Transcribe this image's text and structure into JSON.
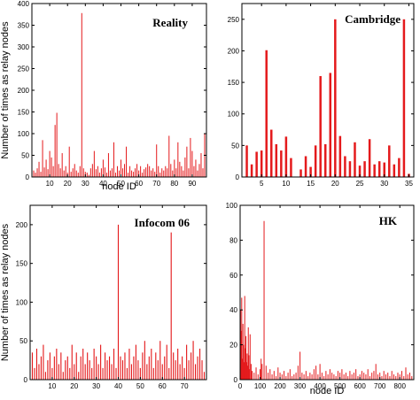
{
  "chart_data": [
    {
      "type": "bar",
      "title": "Reality",
      "xlabel": "node ID",
      "ylabel": "Number of times as relay nodes",
      "xlim": [
        0,
        98
      ],
      "ylim": [
        0,
        400
      ],
      "xticks": [
        10,
        20,
        30,
        40,
        50,
        60,
        70,
        80,
        90
      ],
      "yticks": [
        0,
        50,
        100,
        150,
        200,
        250,
        300,
        350,
        400
      ],
      "color": "#e41a1c",
      "x": [
        1,
        2,
        3,
        4,
        5,
        6,
        7,
        8,
        9,
        10,
        11,
        12,
        13,
        14,
        15,
        16,
        17,
        18,
        19,
        20,
        21,
        22,
        23,
        24,
        25,
        26,
        27,
        28,
        29,
        30,
        31,
        32,
        33,
        34,
        35,
        36,
        37,
        38,
        39,
        40,
        41,
        42,
        43,
        44,
        45,
        46,
        47,
        48,
        49,
        50,
        51,
        52,
        53,
        54,
        55,
        56,
        57,
        58,
        59,
        60,
        61,
        62,
        63,
        64,
        65,
        66,
        67,
        68,
        69,
        70,
        71,
        72,
        73,
        74,
        75,
        76,
        77,
        78,
        79,
        80,
        81,
        82,
        83,
        84,
        85,
        86,
        87,
        88,
        89,
        90,
        91,
        92,
        93,
        94,
        95,
        96,
        97,
        98
      ],
      "values": [
        15,
        10,
        20,
        35,
        12,
        85,
        22,
        40,
        18,
        60,
        45,
        25,
        120,
        148,
        30,
        20,
        55,
        15,
        25,
        10,
        70,
        12,
        20,
        30,
        15,
        10,
        25,
        378,
        20,
        12,
        10,
        5,
        20,
        30,
        60,
        18,
        25,
        10,
        20,
        40,
        22,
        10,
        55,
        15,
        20,
        80,
        10,
        25,
        15,
        40,
        20,
        30,
        70,
        10,
        25,
        15,
        12,
        20,
        30,
        15,
        25,
        10,
        18,
        22,
        30,
        25,
        15,
        20,
        12,
        75,
        25,
        10,
        20,
        15,
        25,
        20,
        95,
        30,
        15,
        40,
        20,
        80,
        35,
        25,
        15,
        45,
        70,
        20,
        90,
        60,
        25,
        40,
        15,
        30,
        55,
        20,
        100,
        100
      ]
    },
    {
      "type": "bar",
      "title": "Cambridge",
      "xlabel": "",
      "ylabel": "",
      "xlim": [
        1,
        36
      ],
      "ylim": [
        0,
        275
      ],
      "xticks": [
        5,
        10,
        15,
        20,
        25,
        30,
        35
      ],
      "yticks": [
        0,
        50,
        100,
        150,
        200,
        250
      ],
      "color": "#e41a1c",
      "x": [
        1,
        2,
        3,
        4,
        5,
        6,
        7,
        8,
        9,
        10,
        11,
        12,
        13,
        14,
        15,
        16,
        17,
        18,
        19,
        20,
        21,
        22,
        23,
        24,
        25,
        26,
        27,
        28,
        29,
        30,
        31,
        32,
        33,
        34,
        35,
        36
      ],
      "values": [
        0,
        50,
        20,
        40,
        42,
        201,
        75,
        52,
        42,
        64,
        30,
        0,
        12,
        33,
        16,
        50,
        160,
        52,
        165,
        250,
        65,
        33,
        25,
        55,
        18,
        25,
        60,
        20,
        25,
        23,
        50,
        20,
        30,
        250,
        5,
        0
      ]
    },
    {
      "type": "bar",
      "title": "Infocom 06",
      "xlabel": "",
      "ylabel": "Number of times as relay nodes",
      "xlim": [
        0,
        80
      ],
      "ylim": [
        0,
        225
      ],
      "xticks": [
        10,
        20,
        30,
        40,
        50,
        60,
        70
      ],
      "yticks": [
        0,
        50,
        100,
        150,
        200
      ],
      "color": "#e41a1c",
      "x": [
        1,
        2,
        3,
        4,
        5,
        6,
        7,
        8,
        9,
        10,
        11,
        12,
        13,
        14,
        15,
        16,
        17,
        18,
        19,
        20,
        21,
        22,
        23,
        24,
        25,
        26,
        27,
        28,
        29,
        30,
        31,
        32,
        33,
        34,
        35,
        36,
        37,
        38,
        39,
        40,
        41,
        42,
        43,
        44,
        45,
        46,
        47,
        48,
        49,
        50,
        51,
        52,
        53,
        54,
        55,
        56,
        57,
        58,
        59,
        60,
        61,
        62,
        63,
        64,
        65,
        66,
        67,
        68,
        69,
        70,
        71,
        72,
        73,
        74,
        75,
        76,
        77,
        78,
        79
      ],
      "values": [
        35,
        15,
        40,
        20,
        30,
        45,
        10,
        25,
        35,
        15,
        30,
        40,
        20,
        35,
        10,
        25,
        30,
        15,
        45,
        20,
        35,
        10,
        30,
        40,
        20,
        35,
        25,
        15,
        40,
        30,
        20,
        45,
        15,
        35,
        25,
        30,
        20,
        40,
        15,
        200,
        30,
        25,
        35,
        15,
        40,
        20,
        30,
        45,
        25,
        15,
        35,
        50,
        20,
        30,
        40,
        15,
        35,
        25,
        50,
        20,
        30,
        45,
        15,
        190,
        35,
        25,
        40,
        20,
        30,
        15,
        45,
        25,
        35,
        50,
        20,
        30,
        40,
        25,
        10
      ]
    },
    {
      "type": "bar",
      "title": "HK",
      "xlabel": "node ID",
      "ylabel": "",
      "xlim": [
        0,
        870
      ],
      "ylim": [
        0,
        100
      ],
      "xticks": [
        0,
        100,
        200,
        300,
        400,
        500,
        600,
        700,
        800
      ],
      "yticks": [
        0,
        20,
        40,
        60,
        80,
        100
      ],
      "color": "#e41a1c",
      "x": [
        2,
        5,
        8,
        11,
        14,
        17,
        20,
        23,
        26,
        29,
        32,
        35,
        38,
        41,
        44,
        47,
        50,
        55,
        60,
        70,
        80,
        90,
        100,
        105,
        110,
        120,
        130,
        140,
        150,
        160,
        170,
        180,
        190,
        200,
        210,
        220,
        230,
        240,
        250,
        260,
        270,
        280,
        290,
        300,
        310,
        320,
        330,
        340,
        350,
        360,
        370,
        380,
        390,
        400,
        410,
        420,
        430,
        440,
        450,
        460,
        470,
        480,
        490,
        500,
        510,
        520,
        530,
        540,
        550,
        560,
        570,
        580,
        590,
        600,
        610,
        620,
        630,
        640,
        650,
        660,
        670,
        680,
        690,
        700,
        710,
        720,
        730,
        740,
        750,
        760,
        770,
        780,
        790,
        800,
        810,
        820,
        830,
        840,
        850,
        860
      ],
      "values": [
        40,
        28,
        47,
        12,
        32,
        20,
        10,
        48,
        18,
        25,
        10,
        15,
        8,
        30,
        14,
        6,
        26,
        9,
        5,
        4,
        7,
        3,
        6,
        12,
        9,
        91,
        8,
        4,
        6,
        3,
        5,
        2,
        7,
        4,
        3,
        5,
        2,
        4,
        6,
        2,
        3,
        4,
        8,
        16,
        4,
        3,
        5,
        2,
        4,
        3,
        6,
        8,
        3,
        9,
        4,
        2,
        5,
        3,
        6,
        4,
        3,
        2,
        5,
        4,
        6,
        3,
        4,
        2,
        5,
        3,
        4,
        6,
        2,
        3,
        5,
        4,
        3,
        6,
        2,
        4,
        5,
        9,
        3,
        4,
        2,
        5,
        3,
        4,
        2,
        5,
        3,
        2,
        4,
        3,
        5,
        2,
        7,
        3,
        4,
        2
      ]
    }
  ]
}
